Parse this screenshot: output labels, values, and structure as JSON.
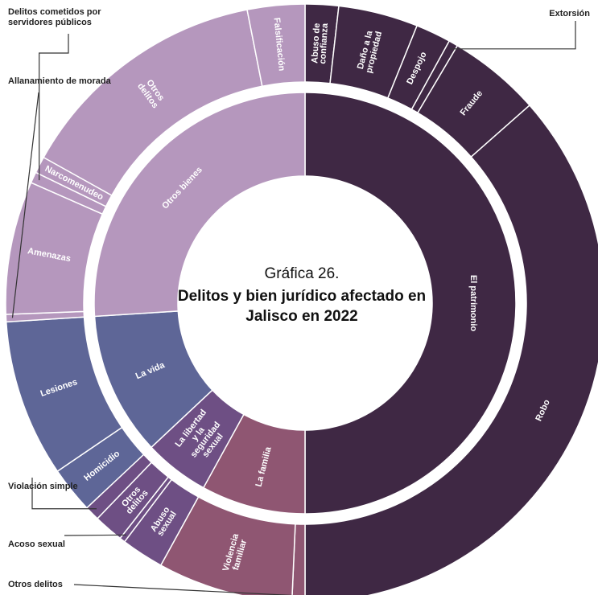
{
  "chart_data": {
    "type": "sunburst",
    "title": "Gráfica 26.",
    "subtitle": "Delitos y bien jurídico afectado en Jalisco en 2022",
    "inner": [
      {
        "name": "El patrimonio",
        "value": 50,
        "color": "#3f2844"
      },
      {
        "name": "La familia",
        "value": 8,
        "color": "#8f5672"
      },
      {
        "name": "La libertad y la seguridad sexual",
        "value": 5,
        "color": "#6e4f84"
      },
      {
        "name": "La vida",
        "value": 11,
        "color": "#5e6697"
      },
      {
        "name": "Otros bienes",
        "value": 26,
        "color": "#b597bd"
      }
    ],
    "outer": [
      {
        "name": "Abuso de confianza",
        "value": 1.8,
        "parent": "El patrimonio",
        "color": "#3f2844"
      },
      {
        "name": "Daño a la propiedad",
        "value": 4.3,
        "parent": "El patrimonio",
        "color": "#3f2844"
      },
      {
        "name": "Despojo",
        "value": 1.9,
        "parent": "El patrimonio",
        "color": "#3f2844"
      },
      {
        "name": "Extorsión",
        "value": 0.5,
        "parent": "El patrimonio",
        "color": "#3f2844"
      },
      {
        "name": "Fraude",
        "value": 5.0,
        "parent": "El patrimonio",
        "color": "#3f2844"
      },
      {
        "name": "Robo",
        "value": 36.5,
        "parent": "El patrimonio",
        "color": "#3f2844"
      },
      {
        "name": "Otros delitos",
        "value": 0.7,
        "parent": "La familia",
        "color": "#8f5672"
      },
      {
        "name": "Violencia familiar",
        "value": 7.3,
        "parent": "La familia",
        "color": "#8f5672"
      },
      {
        "name": "Abuso sexual",
        "value": 2.3,
        "parent": "La libertad y la seguridad sexual",
        "color": "#6e4f84"
      },
      {
        "name": "Acoso sexual",
        "value": 0.3,
        "parent": "La libertad y la seguridad sexual",
        "color": "#6e4f84"
      },
      {
        "name": "Otros delitos",
        "value": 1.6,
        "parent": "La libertad y la seguridad sexual",
        "color": "#6e4f84"
      },
      {
        "name": "Violación simple",
        "value": 0.8,
        "parent": "La libertad y la seguridad sexual",
        "color": "#6e4f84"
      },
      {
        "name": "Homicidio",
        "value": 2.5,
        "parent": "La vida",
        "color": "#5e6697"
      },
      {
        "name": "Lesiones",
        "value": 8.5,
        "parent": "La vida",
        "color": "#5e6697"
      },
      {
        "name": "Allanamiento de morada",
        "value": 0.4,
        "parent": "Otros bienes",
        "color": "#b597bd"
      },
      {
        "name": "Amenazas",
        "value": 7.2,
        "parent": "Otros bienes",
        "color": "#b597bd"
      },
      {
        "name": "Delitos cometidos por servidores públicos",
        "value": 0.6,
        "parent": "Otros bienes",
        "color": "#b597bd"
      },
      {
        "name": "Narcomenudeo",
        "value": 0.9,
        "parent": "Otros bienes",
        "color": "#b597bd"
      },
      {
        "name": "Otros delitos",
        "value": 13.8,
        "parent": "Otros bienes",
        "color": "#b597bd"
      },
      {
        "name": "Falsificación",
        "value": 3.1,
        "parent": "Otros bienes",
        "color": "#b597bd"
      }
    ]
  }
}
